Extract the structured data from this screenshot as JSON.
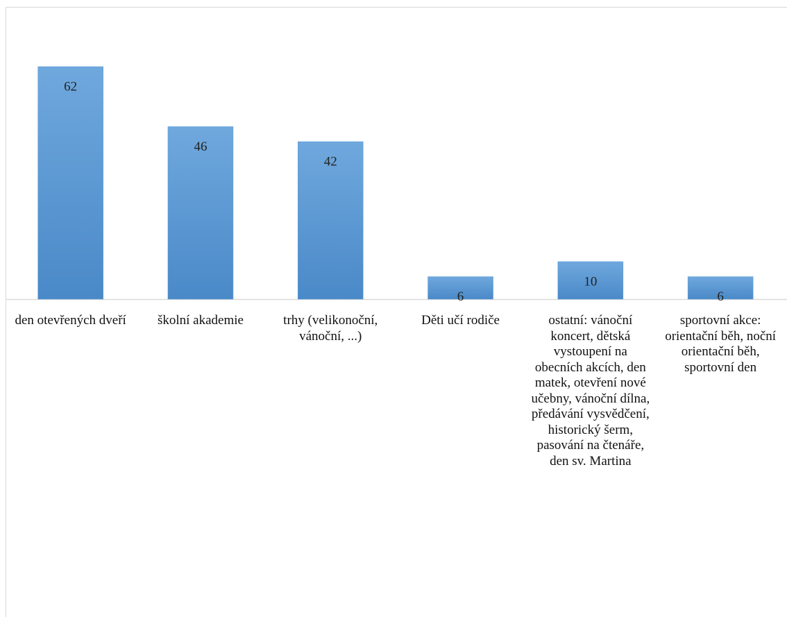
{
  "chart_data": {
    "type": "bar",
    "categories": [
      "den otevřených dveří",
      "školní akademie",
      "trhy (velikonoční, vánoční, ...)",
      "Děti učí rodiče",
      "ostatní: vánoční koncert, dětská vystoupení na obecních akcích, den matek, otevření nové učebny, vánoční dílna, předávání vysvědčení, historický šerm, pasování na čtenáře, den sv. Martina",
      "sportovní akce: orientační běh, noční orientační běh, sportovní den"
    ],
    "values": [
      62,
      46,
      42,
      6,
      10,
      6
    ],
    "color": "#5b9bd5"
  }
}
